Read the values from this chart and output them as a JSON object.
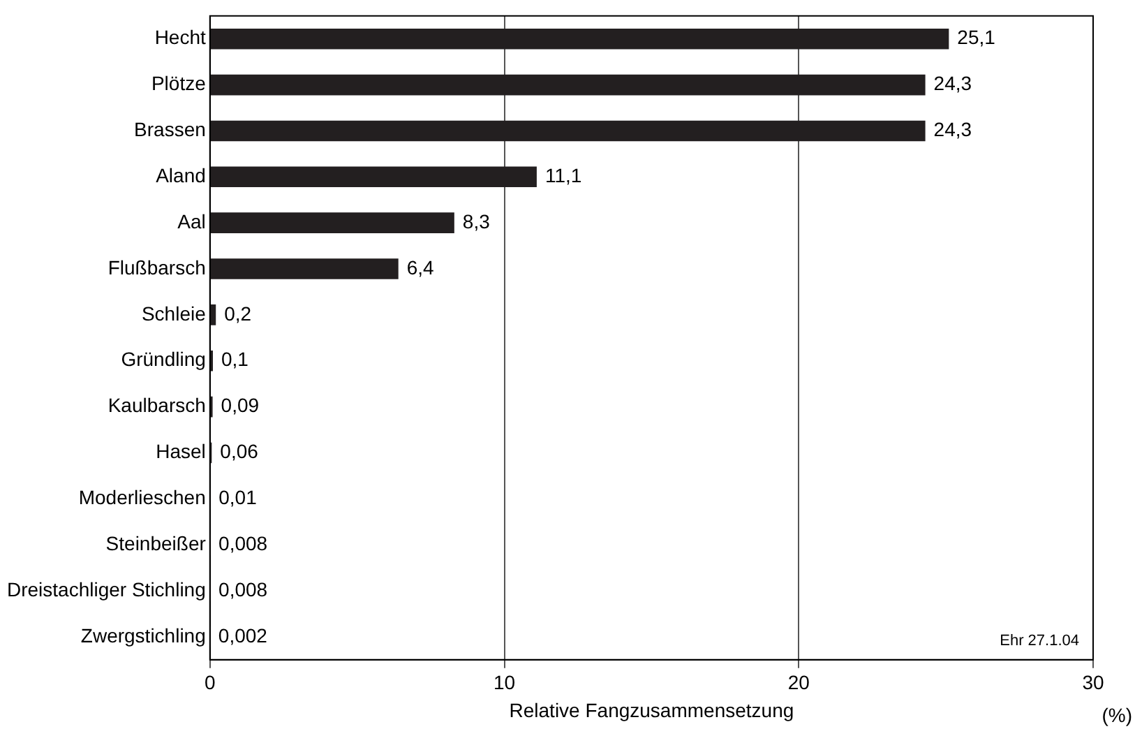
{
  "chart_data": {
    "type": "bar",
    "orientation": "horizontal",
    "xlabel": "Relative Fangzusammensetzung",
    "categories": [
      "Hecht",
      "Plötze",
      "Brassen",
      "Aland",
      "Aal",
      "Flußbarsch",
      "Schleie",
      "Gründling",
      "Kaulbarsch",
      "Hasel",
      "Moderlieschen",
      "Steinbeißer",
      "Dreistachliger Stichling",
      "Zwergstichling"
    ],
    "values": [
      25.1,
      24.3,
      24.3,
      11.1,
      8.3,
      6.4,
      0.2,
      0.1,
      0.09,
      0.06,
      0.01,
      0.008,
      0.008,
      0.002
    ],
    "value_labels": [
      "25,1",
      "24,3",
      "24,3",
      "11,1",
      "8,3",
      "6,4",
      "0,2",
      "0,1",
      "0,09",
      "0,06",
      "0,01",
      "0,008",
      "0,008",
      "0,002"
    ],
    "color": "#231f20",
    "xlim": [
      0,
      30
    ],
    "xticks": [
      0,
      10,
      20,
      30
    ],
    "grid": "x",
    "legend": false,
    "annotations": [
      "(%)",
      "Ehr 27.1.04"
    ]
  }
}
